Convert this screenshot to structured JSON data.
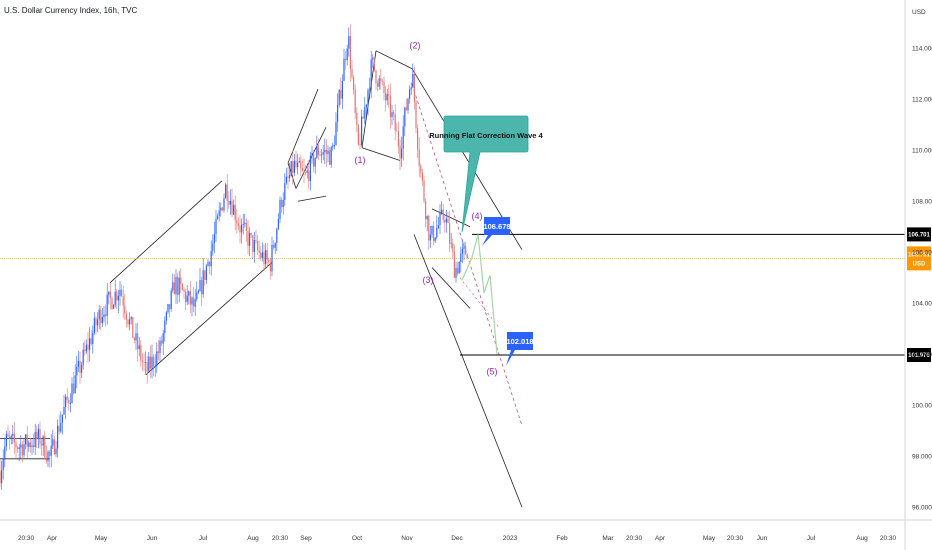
{
  "chart_data": {
    "type": "candlestick",
    "title": "U.S. Dollar Currency Index, 16h, TVC",
    "y_axis": {
      "side": "right",
      "ticks": [
        96.0,
        98.0,
        100.0,
        102.0,
        104.0,
        106.0,
        108.0,
        110.0,
        112.0,
        114.0
      ],
      "currency_label": "USD",
      "ylim": [
        95.5,
        115.5
      ]
    },
    "x_axis": {
      "ticks": [
        "20:30",
        "Apr",
        "May",
        "Jun",
        "Jul",
        "Aug",
        "20:30",
        "Sep",
        "Oct",
        "Nov",
        "Dec",
        "2023",
        "Feb",
        "Mar",
        "20:30",
        "Apr",
        "May",
        "20:30",
        "Jun",
        "Jul",
        "Aug",
        "20:30"
      ]
    },
    "price_path": [
      {
        "t": 0,
        "v": 97.4
      },
      {
        "t": 6,
        "v": 98.6
      },
      {
        "t": 20,
        "v": 98.4
      },
      {
        "t": 40,
        "v": 98.7
      },
      {
        "t": 50,
        "v": 97.9
      },
      {
        "t": 62,
        "v": 99.6
      },
      {
        "t": 80,
        "v": 101.5
      },
      {
        "t": 100,
        "v": 103.6
      },
      {
        "t": 120,
        "v": 104.6
      },
      {
        "t": 132,
        "v": 102.9
      },
      {
        "t": 146,
        "v": 101.3
      },
      {
        "t": 160,
        "v": 102.2
      },
      {
        "t": 175,
        "v": 104.8
      },
      {
        "t": 195,
        "v": 103.8
      },
      {
        "t": 212,
        "v": 106.2
      },
      {
        "t": 226,
        "v": 108.6
      },
      {
        "t": 240,
        "v": 107.0
      },
      {
        "t": 258,
        "v": 106.0
      },
      {
        "t": 270,
        "v": 105.5
      },
      {
        "t": 282,
        "v": 108.2
      },
      {
        "t": 294,
        "v": 109.4
      },
      {
        "t": 305,
        "v": 108.9
      },
      {
        "t": 318,
        "v": 110.0
      },
      {
        "t": 332,
        "v": 109.8
      },
      {
        "t": 348,
        "v": 114.6
      },
      {
        "t": 358,
        "v": 110.0
      },
      {
        "t": 372,
        "v": 113.4
      },
      {
        "t": 390,
        "v": 111.6
      },
      {
        "t": 400,
        "v": 110.1
      },
      {
        "t": 412,
        "v": 113.1
      },
      {
        "t": 420,
        "v": 109.3
      },
      {
        "t": 430,
        "v": 106.5
      },
      {
        "t": 445,
        "v": 107.5
      },
      {
        "t": 455,
        "v": 105.3
      },
      {
        "t": 468,
        "v": 106.2
      }
    ],
    "forecast_path": [
      {
        "t": 462,
        "v": 104.9
      },
      {
        "t": 472,
        "v": 105.8
      },
      {
        "t": 478,
        "v": 106.7
      },
      {
        "t": 484,
        "v": 104.4
      },
      {
        "t": 490,
        "v": 105.1
      },
      {
        "t": 497,
        "v": 102.0
      }
    ],
    "wave_labels": [
      {
        "label": "(1)",
        "t": 360,
        "v": 109.5
      },
      {
        "label": "(2)",
        "t": 415,
        "v": 114.0
      },
      {
        "label": "(3)",
        "t": 428,
        "v": 104.8
      },
      {
        "label": "(4)",
        "t": 477,
        "v": 107.3
      },
      {
        "label": "(5)",
        "t": 492,
        "v": 101.2
      }
    ],
    "annotations": {
      "callout": "Running Flat Correction Wave 4",
      "price_label_1": "106.678",
      "price_label_2": "102.018",
      "axis_label_1": "106.701",
      "axis_label_2": "101.976",
      "current_price": "105.761",
      "current_price_sub": "USD"
    },
    "horizontal_lines": [
      {
        "v": 106.7,
        "color": "#000000"
      },
      {
        "v": 101.97,
        "color": "#000000"
      },
      {
        "v": 105.76,
        "color": "#ffb74d"
      }
    ],
    "colors": {
      "up": "#2962ff",
      "down": "#e57373",
      "channel": "#222222",
      "wave_label": "#9c27b0",
      "callout_fill": "#4db6ac",
      "price_box": "#2962ff",
      "forecast": "#a5d6a7",
      "current_price": "#ff9800"
    }
  }
}
